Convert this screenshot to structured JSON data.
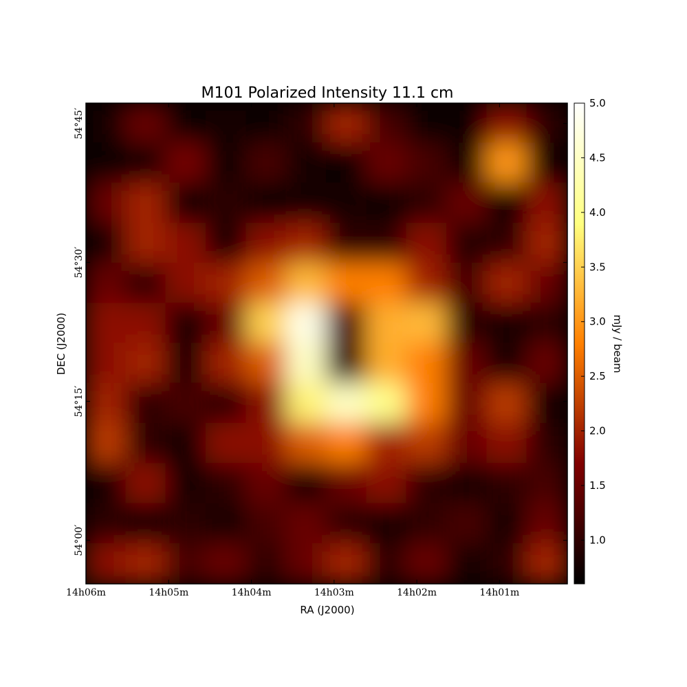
{
  "chart_data": {
    "type": "image",
    "title": "M101  Polarized Intensity 11.1 cm",
    "x_label": "RA (J2000)",
    "y_label": "DEC (J2000)",
    "colorbar_label": "mJy / beam",
    "xlim": [
      6.0,
      0.18
    ],
    "ylim": [
      -4.7,
      47.2
    ],
    "xticks": [
      {
        "value": 6,
        "label": "14h06m"
      },
      {
        "value": 5,
        "label": "14h05m"
      },
      {
        "value": 4,
        "label": "14h04m"
      },
      {
        "value": 3,
        "label": "14h03m"
      },
      {
        "value": 2,
        "label": "14h02m"
      },
      {
        "value": 1,
        "label": "14h01m"
      }
    ],
    "yticks": [
      {
        "value": 0,
        "label": "54°00′"
      },
      {
        "value": 15,
        "label": "54°15′"
      },
      {
        "value": 30,
        "label": "54°30′"
      },
      {
        "value": 45,
        "label": "54°45′"
      }
    ],
    "clim": [
      0.6,
      5.0
    ],
    "cticks": [
      {
        "value": 1,
        "label": "1.0"
      },
      {
        "value": 1.5,
        "label": "1.5"
      },
      {
        "value": 2,
        "label": "2.0"
      },
      {
        "value": 2.5,
        "label": "2.5"
      },
      {
        "value": 3,
        "label": "3.0"
      },
      {
        "value": 3.5,
        "label": "3.5"
      },
      {
        "value": 4,
        "label": "4.0"
      },
      {
        "value": 4.5,
        "label": "4.5"
      },
      {
        "value": 5,
        "label": "5.0"
      }
    ],
    "colormap": "afmhot",
    "z": [
      [
        0.8,
        1.5,
        0.7,
        0.8,
        0.7,
        1.0,
        2.0,
        1.2,
        0.7,
        0.7,
        1.8,
        1.0
      ],
      [
        0.7,
        0.8,
        1.6,
        0.7,
        1.2,
        0.8,
        0.7,
        1.5,
        1.2,
        0.8,
        3.0,
        0.8
      ],
      [
        1.5,
        2.0,
        0.7,
        1.0,
        0.7,
        0.8,
        0.8,
        0.7,
        1.0,
        1.5,
        0.7,
        1.8
      ],
      [
        0.8,
        2.0,
        1.8,
        0.7,
        1.8,
        2.0,
        1.0,
        1.0,
        1.8,
        0.9,
        1.0,
        2.0
      ],
      [
        1.5,
        1.0,
        1.8,
        2.0,
        2.5,
        3.3,
        2.8,
        2.8,
        2.0,
        1.2,
        2.0,
        1.5
      ],
      [
        1.8,
        1.8,
        0.8,
        1.5,
        3.5,
        4.8,
        1.2,
        3.2,
        3.3,
        1.0,
        0.8,
        1.0
      ],
      [
        1.8,
        2.0,
        0.8,
        2.0,
        2.5,
        4.5,
        1.0,
        3.2,
        2.8,
        1.5,
        0.8,
        1.5
      ],
      [
        2.0,
        1.0,
        1.2,
        1.0,
        1.8,
        3.8,
        4.5,
        4.0,
        2.8,
        1.5,
        2.2,
        0.8
      ],
      [
        2.2,
        1.0,
        0.8,
        1.8,
        1.8,
        2.5,
        2.8,
        2.0,
        2.2,
        1.5,
        1.8,
        1.0
      ],
      [
        0.8,
        1.8,
        0.8,
        1.0,
        1.5,
        0.8,
        1.5,
        1.8,
        1.0,
        0.8,
        1.0,
        1.2
      ],
      [
        1.0,
        0.7,
        1.0,
        0.8,
        1.2,
        1.5,
        1.0,
        0.8,
        1.0,
        1.2,
        0.8,
        1.5
      ],
      [
        1.8,
        2.0,
        1.2,
        1.5,
        1.0,
        1.5,
        2.0,
        1.0,
        1.5,
        0.8,
        1.0,
        2.0
      ]
    ]
  }
}
